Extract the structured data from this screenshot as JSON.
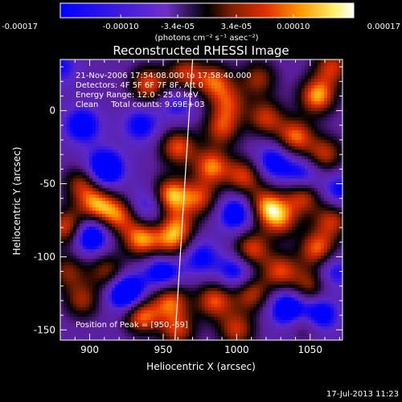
{
  "chart_data": {
    "type": "heatmap",
    "title": "Reconstructed RHESSI Image",
    "xlabel": "Heliocentric X (arcsec)",
    "ylabel": "Heliocentric Y (arcsec)",
    "xlim": [
      880,
      1072
    ],
    "ylim": [
      -157,
      35
    ],
    "xticks": [
      900,
      950,
      1000,
      1050
    ],
    "yticks": [
      0,
      -50,
      -100,
      -150
    ],
    "colorbar": {
      "min": -0.00017,
      "max": 0.00017,
      "ticks": [
        "-0.00017",
        "-0.00010",
        "-3.4e-05",
        "3.4e-05",
        "0.00010",
        "0.00017"
      ],
      "tick_values": [
        -0.00017,
        -0.0001,
        -3.4e-05,
        3.4e-05,
        0.0001,
        0.00017
      ],
      "unit_label": "(photons cm⁻² s⁻¹ asec⁻²)"
    },
    "annotations": [
      "21-Nov-2006 17:54:08.000 to 17:58:40.000",
      "Detectors: 4F 5F 6F 7F 8F, Att 0",
      "Energy Range: 12.0 - 25.0 keV",
      "Clean     Total counts: 9.69E+03"
    ],
    "peak_label": "Position of Peak = [950,-59]",
    "limb_line": [
      [
        958,
        -157
      ],
      [
        970,
        35
      ]
    ],
    "blobs": [
      {
        "x": 940,
        "y": 18,
        "v": 0.8
      },
      {
        "x": 965,
        "y": 25,
        "v": 0.7
      },
      {
        "x": 985,
        "y": 20,
        "v": 0.75
      },
      {
        "x": 1015,
        "y": 22,
        "v": 0.6
      },
      {
        "x": 1055,
        "y": 10,
        "v": 0.95
      },
      {
        "x": 1065,
        "y": 30,
        "v": 0.7
      },
      {
        "x": 1020,
        "y": -5,
        "v": 0.7
      },
      {
        "x": 1040,
        "y": -18,
        "v": 0.85
      },
      {
        "x": 990,
        "y": -12,
        "v": 0.7
      },
      {
        "x": 960,
        "y": -25,
        "v": 0.8
      },
      {
        "x": 983,
        "y": -38,
        "v": 0.85
      },
      {
        "x": 1005,
        "y": -45,
        "v": 0.75
      },
      {
        "x": 955,
        "y": -58,
        "v": 1.0
      },
      {
        "x": 975,
        "y": -60,
        "v": 0.7
      },
      {
        "x": 895,
        "y": -50,
        "v": 0.65
      },
      {
        "x": 905,
        "y": -65,
        "v": 0.85
      },
      {
        "x": 920,
        "y": -72,
        "v": 0.75
      },
      {
        "x": 935,
        "y": -88,
        "v": 0.9
      },
      {
        "x": 955,
        "y": -92,
        "v": 0.6
      },
      {
        "x": 885,
        "y": -80,
        "v": 0.85
      },
      {
        "x": 960,
        "y": -80,
        "v": 0.7
      },
      {
        "x": 1020,
        "y": -65,
        "v": 0.85
      },
      {
        "x": 1010,
        "y": -95,
        "v": 0.8
      },
      {
        "x": 1030,
        "y": -75,
        "v": 0.7
      },
      {
        "x": 1045,
        "y": -58,
        "v": 0.8
      },
      {
        "x": 1060,
        "y": -30,
        "v": 0.7
      },
      {
        "x": 1055,
        "y": -95,
        "v": 0.85
      },
      {
        "x": 1065,
        "y": -75,
        "v": 0.7
      },
      {
        "x": 985,
        "y": -130,
        "v": 0.8
      },
      {
        "x": 1010,
        "y": -125,
        "v": 0.7
      },
      {
        "x": 1030,
        "y": -110,
        "v": 0.75
      },
      {
        "x": 1050,
        "y": -120,
        "v": 0.65
      },
      {
        "x": 885,
        "y": -110,
        "v": 0.55
      },
      {
        "x": 935,
        "y": -140,
        "v": 0.9
      },
      {
        "x": 955,
        "y": -130,
        "v": 0.8
      },
      {
        "x": 895,
        "y": -130,
        "v": 0.6
      },
      {
        "x": 960,
        "y": -150,
        "v": 0.7
      },
      {
        "x": 1000,
        "y": -150,
        "v": 0.7
      },
      {
        "x": 1048,
        "y": -145,
        "v": 0.6
      },
      {
        "x": 912,
        "y": -110,
        "v": 0.6
      },
      {
        "x": 995,
        "y": 5,
        "v": 0.6
      },
      {
        "x": 910,
        "y": -40,
        "v": -0.9
      },
      {
        "x": 900,
        "y": -85,
        "v": -0.9
      },
      {
        "x": 925,
        "y": -125,
        "v": -1.0
      },
      {
        "x": 950,
        "y": -110,
        "v": -0.7
      },
      {
        "x": 1000,
        "y": -70,
        "v": -0.7
      },
      {
        "x": 1035,
        "y": -135,
        "v": -0.8
      },
      {
        "x": 1055,
        "y": -140,
        "v": -0.9
      },
      {
        "x": 1045,
        "y": -45,
        "v": -0.6
      },
      {
        "x": 895,
        "y": -10,
        "v": -0.6
      },
      {
        "x": 935,
        "y": -10,
        "v": -0.5
      },
      {
        "x": 1000,
        "y": -110,
        "v": -0.6
      },
      {
        "x": 975,
        "y": -100,
        "v": -0.5
      },
      {
        "x": 1070,
        "y": -55,
        "v": -0.5
      },
      {
        "x": 1025,
        "y": -35,
        "v": -0.6
      },
      {
        "x": 960,
        "y": 5,
        "v": -0.4
      },
      {
        "x": 880,
        "y": 30,
        "v": -0.4
      },
      {
        "x": 1065,
        "y": -110,
        "v": -0.5
      },
      {
        "x": 940,
        "y": -65,
        "v": -0.5
      }
    ]
  },
  "footer": {
    "timestamp": "17-Jul-2013 11:23"
  }
}
